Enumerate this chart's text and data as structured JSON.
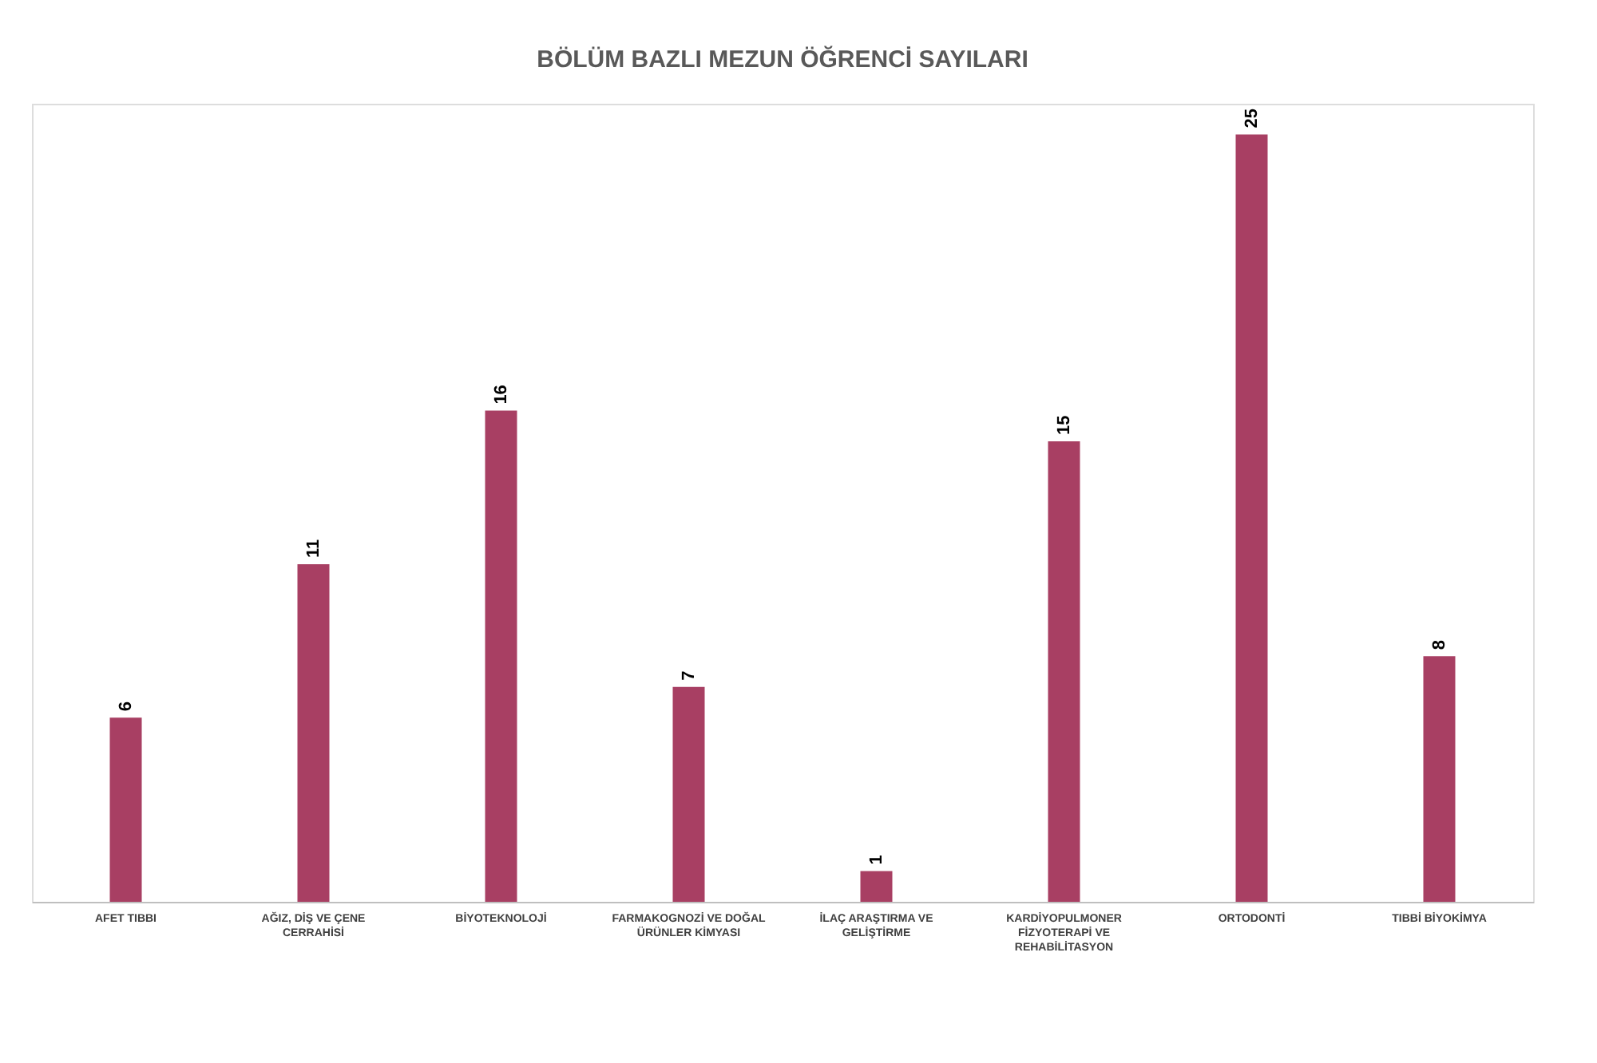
{
  "chart_data": {
    "type": "bar",
    "title": "BÖLÜM BAZLI MEZUN ÖĞRENCİ SAYILARI",
    "categories": [
      "AFET TIBBI",
      "AĞIZ, DİŞ VE ÇENE CERRAHİSİ",
      "BİYOTEKNOLOJİ",
      "FARMAKOGNOZİ VE DOĞAL ÜRÜNLER KİMYASI",
      "İLAÇ ARAŞTIRMA VE GELİŞTİRME",
      "KARDİYOPULMONER FİZYOTERAPİ VE REHABİLİTASYON",
      "ORTODONTİ",
      "TIBBİ BİYOKİMYA"
    ],
    "values": [
      6,
      11,
      16,
      7,
      1,
      15,
      25,
      8
    ],
    "color": "#a83f63",
    "data_labels": true
  }
}
